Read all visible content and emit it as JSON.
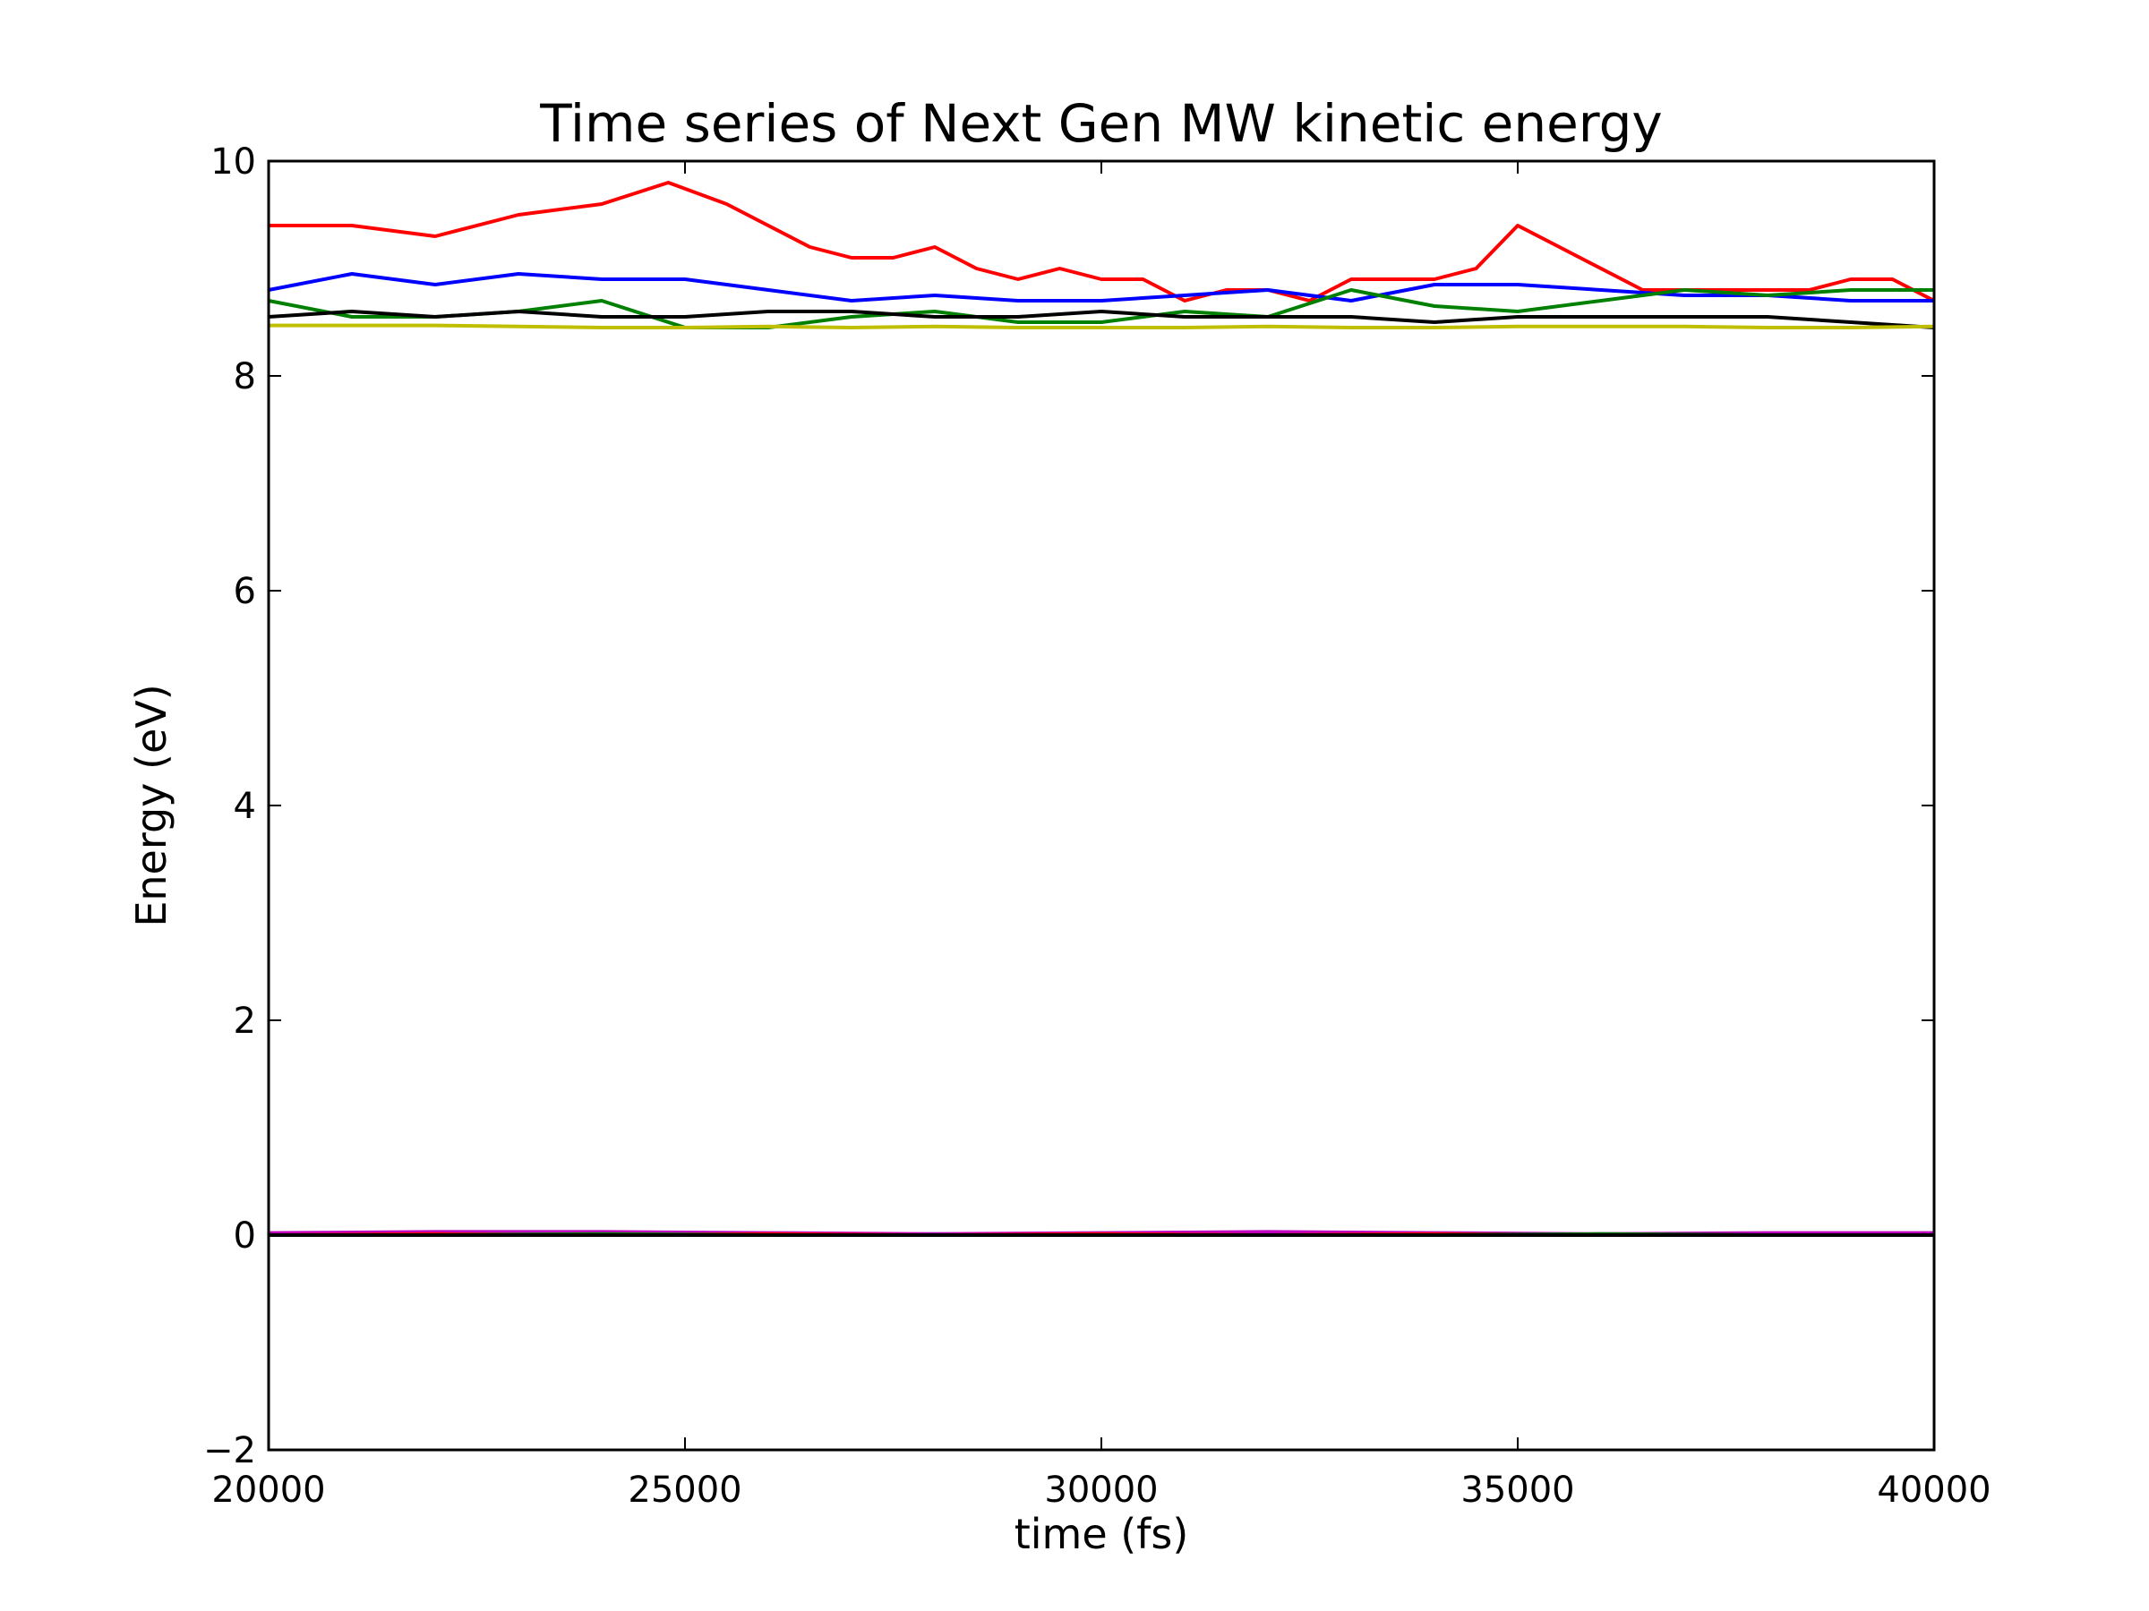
{
  "chart_data": {
    "type": "line",
    "title": "Time series of Next Gen MW kinetic energy",
    "xlabel": "time (fs)",
    "ylabel": "Energy (eV)",
    "xlim": [
      20000,
      40000
    ],
    "ylim": [
      -2,
      10
    ],
    "xticks": [
      20000,
      25000,
      30000,
      35000,
      40000
    ],
    "yticks": [
      -2,
      0,
      2,
      4,
      6,
      8,
      10
    ],
    "xtick_labels": [
      "20000",
      "25000",
      "30000",
      "35000",
      "40000"
    ],
    "ytick_labels": [
      "−2",
      "0",
      "2",
      "4",
      "6",
      "8",
      "10"
    ],
    "grid": false,
    "series": [
      {
        "color": "#ff0000",
        "x": [
          20000,
          21000,
          22000,
          23000,
          24000,
          24800,
          25500,
          26000,
          26500,
          27000,
          27500,
          28000,
          28500,
          29000,
          29500,
          30000,
          30500,
          31000,
          31500,
          32000,
          32500,
          33000,
          33500,
          34000,
          34500,
          35000,
          35500,
          36000,
          36500,
          37000,
          37500,
          38000,
          38500,
          39000,
          39500,
          40000
        ],
        "y": [
          9.4,
          9.4,
          9.3,
          9.5,
          9.6,
          9.8,
          9.6,
          9.4,
          9.2,
          9.1,
          9.1,
          9.2,
          9.0,
          8.9,
          9.0,
          8.9,
          8.9,
          8.7,
          8.8,
          8.8,
          8.7,
          8.9,
          8.9,
          8.9,
          9.0,
          9.4,
          9.2,
          9.0,
          8.8,
          8.8,
          8.8,
          8.8,
          8.8,
          8.9,
          8.9,
          8.7
        ]
      },
      {
        "color": "#0000ff",
        "x": [
          20000,
          21000,
          22000,
          23000,
          24000,
          25000,
          26000,
          27000,
          28000,
          29000,
          30000,
          31000,
          32000,
          33000,
          34000,
          35000,
          36000,
          37000,
          38000,
          39000,
          40000
        ],
        "y": [
          8.8,
          8.95,
          8.85,
          8.95,
          8.9,
          8.9,
          8.8,
          8.7,
          8.75,
          8.7,
          8.7,
          8.75,
          8.8,
          8.7,
          8.85,
          8.85,
          8.8,
          8.75,
          8.75,
          8.7,
          8.7
        ]
      },
      {
        "color": "#008000",
        "x": [
          20000,
          21000,
          22000,
          23000,
          24000,
          25000,
          26000,
          27000,
          28000,
          29000,
          30000,
          31000,
          32000,
          33000,
          34000,
          35000,
          36000,
          37000,
          38000,
          39000,
          40000
        ],
        "y": [
          8.7,
          8.55,
          8.55,
          8.6,
          8.7,
          8.45,
          8.45,
          8.55,
          8.6,
          8.5,
          8.5,
          8.6,
          8.55,
          8.8,
          8.65,
          8.6,
          8.7,
          8.8,
          8.75,
          8.8,
          8.8
        ]
      },
      {
        "color": "#000000",
        "x": [
          20000,
          21000,
          22000,
          23000,
          24000,
          25000,
          26000,
          27000,
          28000,
          29000,
          30000,
          31000,
          32000,
          33000,
          34000,
          35000,
          36000,
          37000,
          38000,
          39000,
          40000
        ],
        "y": [
          8.55,
          8.6,
          8.55,
          8.6,
          8.55,
          8.55,
          8.6,
          8.6,
          8.55,
          8.55,
          8.6,
          8.55,
          8.55,
          8.55,
          8.5,
          8.55,
          8.55,
          8.55,
          8.55,
          8.5,
          8.45
        ]
      },
      {
        "color": "#bfbf00",
        "x": [
          20000,
          21000,
          22000,
          23000,
          24000,
          25000,
          26000,
          27000,
          28000,
          29000,
          30000,
          31000,
          32000,
          33000,
          34000,
          35000,
          36000,
          37000,
          38000,
          39000,
          40000
        ],
        "y": [
          8.47,
          8.47,
          8.47,
          8.46,
          8.45,
          8.45,
          8.46,
          8.45,
          8.46,
          8.45,
          8.45,
          8.45,
          8.46,
          8.45,
          8.45,
          8.46,
          8.46,
          8.46,
          8.45,
          8.45,
          8.46
        ]
      },
      {
        "color": "#00bfbf",
        "x": [
          20000,
          22000,
          24000,
          26000,
          28000,
          30000,
          32000,
          34000,
          36000,
          38000,
          40000
        ],
        "y": [
          0.01,
          0.02,
          0.01,
          0.0,
          0.01,
          0.0,
          0.01,
          0.0,
          0.01,
          0.0,
          0.01
        ]
      },
      {
        "color": "#bf00bf",
        "x": [
          20000,
          22000,
          24000,
          26000,
          28000,
          30000,
          32000,
          34000,
          36000,
          38000,
          40000
        ],
        "y": [
          0.02,
          0.03,
          0.03,
          0.02,
          0.01,
          0.02,
          0.03,
          0.02,
          0.01,
          0.02,
          0.02
        ]
      },
      {
        "color": "#ff0000",
        "x": [
          20000,
          22000,
          24000,
          26000,
          28000,
          30000,
          32000,
          34000,
          36000,
          38000,
          40000
        ],
        "y": [
          0.0,
          0.01,
          0.0,
          0.01,
          0.0,
          0.01,
          0.0,
          0.01,
          0.0,
          0.0,
          0.0
        ]
      },
      {
        "color": "#008000",
        "x": [
          20000,
          22000,
          24000,
          26000,
          28000,
          30000,
          32000,
          34000,
          36000,
          38000,
          40000
        ],
        "y": [
          0.0,
          0.0,
          0.01,
          0.0,
          0.0,
          0.0,
          0.0,
          0.0,
          0.01,
          0.0,
          0.0
        ]
      },
      {
        "color": "#0000ff",
        "x": [
          20000,
          22000,
          24000,
          26000,
          28000,
          30000,
          32000,
          34000,
          36000,
          38000,
          40000
        ],
        "y": [
          0.0,
          0.0,
          0.0,
          0.0,
          0.0,
          0.0,
          0.0,
          0.0,
          0.0,
          0.0,
          0.0
        ]
      },
      {
        "color": "#000000",
        "x": [
          20000,
          22000,
          24000,
          26000,
          28000,
          30000,
          32000,
          34000,
          36000,
          38000,
          40000
        ],
        "y": [
          0.0,
          0.0,
          0.0,
          0.0,
          0.0,
          0.0,
          0.0,
          0.0,
          0.0,
          0.0,
          0.0
        ]
      }
    ]
  }
}
